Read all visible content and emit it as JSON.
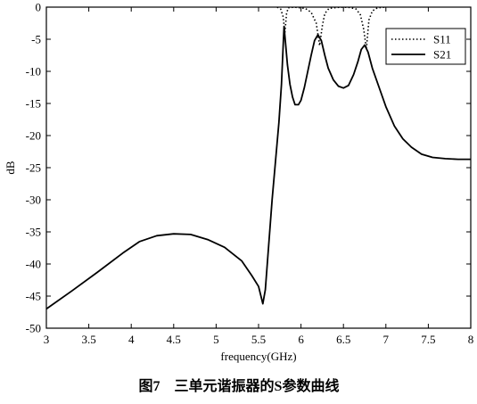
{
  "figure": {
    "caption": "图7　三单元谐振器的S参数曲线"
  },
  "chart_data": {
    "type": "line",
    "title": "",
    "xlabel": "frequency(GHz)",
    "ylabel": "dB",
    "xlim": [
      3,
      8
    ],
    "ylim": [
      -50,
      0
    ],
    "xticks": [
      3,
      3.5,
      4,
      4.5,
      5,
      5.5,
      6,
      6.5,
      7,
      7.5,
      8
    ],
    "xtick_labels": [
      "3",
      "3.5",
      "4",
      "4.5",
      "5",
      "5.5",
      "6",
      "6.5",
      "7",
      "7.5",
      "8"
    ],
    "yticks": [
      0,
      -5,
      -10,
      -15,
      -20,
      -25,
      -30,
      -35,
      -40,
      -45,
      -50
    ],
    "ytick_labels": [
      "0",
      "-5",
      "-10",
      "-15",
      "-20",
      "-25",
      "-30",
      "-35",
      "-40",
      "-45",
      "-50"
    ],
    "grid": false,
    "legend_position": "top-right",
    "series": [
      {
        "name": "S11",
        "style": "dotted",
        "color": "#000000",
        "points": [
          [
            5.72,
            0
          ],
          [
            5.76,
            -0.3
          ],
          [
            5.79,
            -1.5
          ],
          [
            5.81,
            -4
          ],
          [
            5.83,
            -1
          ],
          [
            5.85,
            -0.1
          ],
          [
            5.92,
            0
          ],
          [
            6.05,
            -0.2
          ],
          [
            6.12,
            -0.8
          ],
          [
            6.18,
            -2.5
          ],
          [
            6.22,
            -6
          ],
          [
            6.25,
            -3
          ],
          [
            6.28,
            -1
          ],
          [
            6.33,
            -0.2
          ],
          [
            6.42,
            -0.05
          ],
          [
            6.5,
            0
          ],
          [
            6.58,
            -0.05
          ],
          [
            6.65,
            -0.3
          ],
          [
            6.7,
            -1.2
          ],
          [
            6.74,
            -3.5
          ],
          [
            6.77,
            -6.5
          ],
          [
            6.8,
            -2
          ],
          [
            6.84,
            -0.6
          ],
          [
            6.9,
            -0.1
          ],
          [
            7.0,
            0
          ]
        ]
      },
      {
        "name": "S21",
        "style": "solid",
        "color": "#000000",
        "points": [
          [
            3.0,
            -47
          ],
          [
            3.3,
            -44.2
          ],
          [
            3.6,
            -41.3
          ],
          [
            3.9,
            -38.3
          ],
          [
            4.1,
            -36.5
          ],
          [
            4.3,
            -35.6
          ],
          [
            4.5,
            -35.3
          ],
          [
            4.7,
            -35.4
          ],
          [
            4.9,
            -36.2
          ],
          [
            5.1,
            -37.4
          ],
          [
            5.3,
            -39.5
          ],
          [
            5.42,
            -41.8
          ],
          [
            5.5,
            -43.5
          ],
          [
            5.55,
            -46.2
          ],
          [
            5.58,
            -44
          ],
          [
            5.62,
            -37
          ],
          [
            5.66,
            -30
          ],
          [
            5.7,
            -24
          ],
          [
            5.74,
            -18
          ],
          [
            5.77,
            -12
          ],
          [
            5.79,
            -6
          ],
          [
            5.8,
            -3
          ],
          [
            5.82,
            -6
          ],
          [
            5.84,
            -9
          ],
          [
            5.87,
            -12
          ],
          [
            5.9,
            -14
          ],
          [
            5.93,
            -15.2
          ],
          [
            5.97,
            -15.2
          ],
          [
            6.0,
            -14.5
          ],
          [
            6.04,
            -12.5
          ],
          [
            6.08,
            -10
          ],
          [
            6.12,
            -7.5
          ],
          [
            6.16,
            -5.2
          ],
          [
            6.2,
            -4.3
          ],
          [
            6.24,
            -5.2
          ],
          [
            6.28,
            -7.5
          ],
          [
            6.32,
            -9.5
          ],
          [
            6.38,
            -11.3
          ],
          [
            6.44,
            -12.3
          ],
          [
            6.5,
            -12.6
          ],
          [
            6.56,
            -12.2
          ],
          [
            6.62,
            -10.5
          ],
          [
            6.67,
            -8.5
          ],
          [
            6.71,
            -6.6
          ],
          [
            6.75,
            -5.9
          ],
          [
            6.79,
            -7
          ],
          [
            6.84,
            -9.5
          ],
          [
            6.92,
            -12.5
          ],
          [
            7.0,
            -15.5
          ],
          [
            7.1,
            -18.5
          ],
          [
            7.2,
            -20.5
          ],
          [
            7.3,
            -21.8
          ],
          [
            7.42,
            -22.9
          ],
          [
            7.55,
            -23.4
          ],
          [
            7.7,
            -23.6
          ],
          [
            7.85,
            -23.7
          ],
          [
            8.0,
            -23.7
          ]
        ]
      }
    ]
  }
}
